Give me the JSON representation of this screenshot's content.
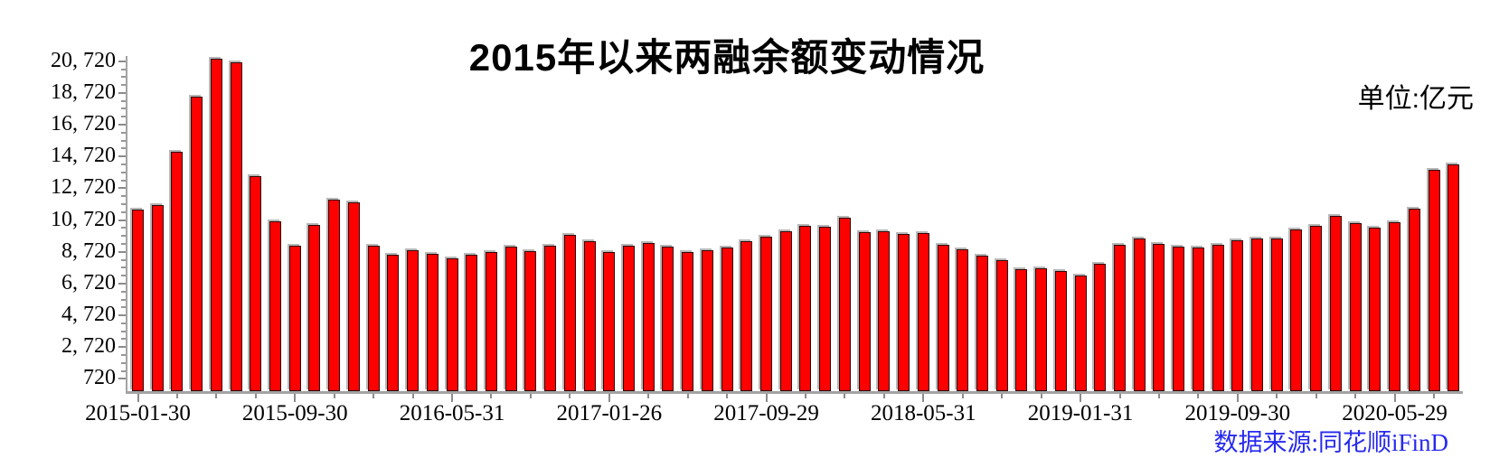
{
  "chart_data": {
    "type": "bar",
    "title": "2015年以来两融余额变动情况",
    "unit_label": "单位:亿元",
    "source_label": "数据来源:同花顺iFinD",
    "source_color": "#2729ee",
    "bar_color": "#fe0000",
    "bar_border_color": "#2d0808",
    "axis_color": "#a3a3a3",
    "ylim": [
      0,
      21000
    ],
    "y_tick_values": [
      720,
      2720,
      4720,
      6720,
      8720,
      10720,
      12720,
      14720,
      16720,
      18720,
      20720
    ],
    "y_tick_labels": [
      "720",
      "2, 720",
      "4, 720",
      "6, 720",
      "8, 720",
      "10, 720",
      "12, 720",
      "14, 720",
      "16, 720",
      "18, 720",
      "20, 720"
    ],
    "x_tick_labels": [
      {
        "index": 0,
        "label": "2015-01-30"
      },
      {
        "index": 8,
        "label": "2015-09-30"
      },
      {
        "index": 16,
        "label": "2016-05-31"
      },
      {
        "index": 24,
        "label": "2017-01-26"
      },
      {
        "index": 32,
        "label": "2017-09-29"
      },
      {
        "index": 40,
        "label": "2018-05-31"
      },
      {
        "index": 48,
        "label": "2019-01-31"
      },
      {
        "index": 56,
        "label": "2019-09-30"
      },
      {
        "index": 64,
        "label": "2020-05-29"
      }
    ],
    "values": [
      11370,
      11660,
      15030,
      18510,
      20900,
      20650,
      13490,
      10650,
      9100,
      10400,
      12030,
      11820,
      9110,
      8530,
      8840,
      8590,
      8300,
      8530,
      8690,
      9030,
      8760,
      9100,
      9790,
      9410,
      8730,
      9100,
      9260,
      9070,
      8730,
      8820,
      9010,
      9410,
      9700,
      10020,
      10340,
      10290,
      10840,
      9960,
      10020,
      9830,
      9890,
      9160,
      8870,
      8500,
      8170,
      7640,
      7670,
      7490,
      7220,
      7980,
      9160,
      9580,
      9200,
      9070,
      9010,
      9160,
      9450,
      9580,
      9580,
      10150,
      10340,
      10970,
      10530,
      10250,
      10590,
      11450,
      13870,
      14210
    ],
    "legend": null,
    "grid": false
  }
}
